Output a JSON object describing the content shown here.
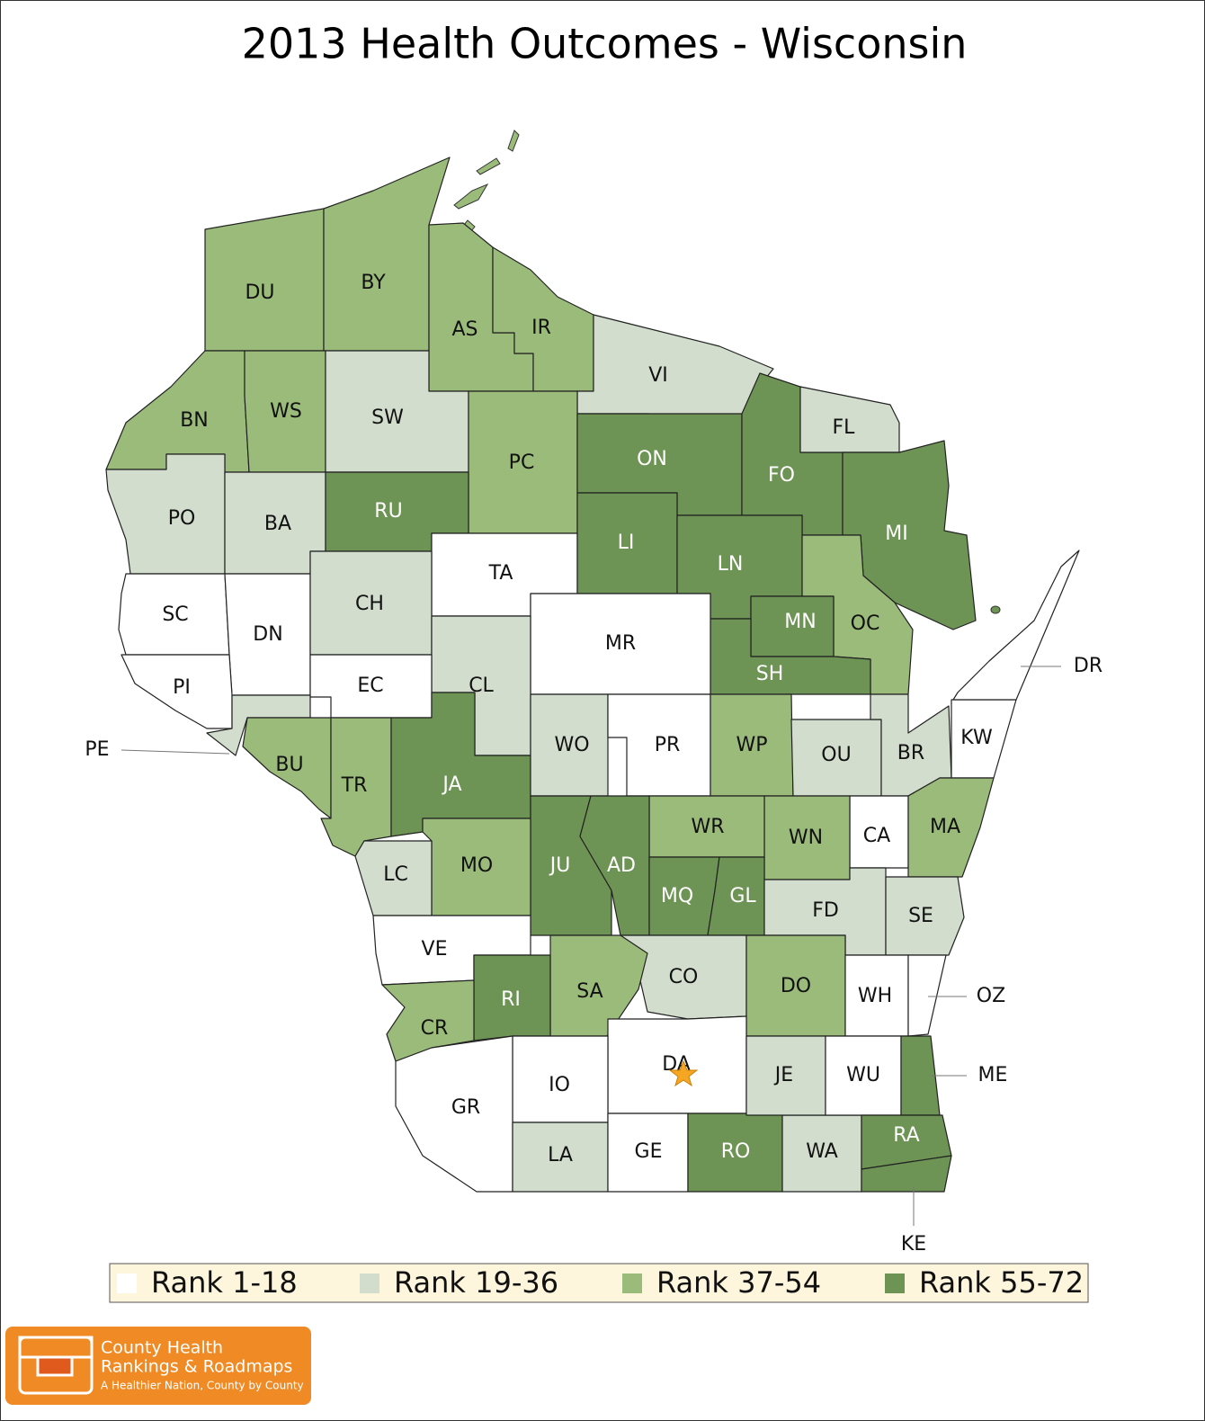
{
  "title": "2013 Health Outcomes - Wisconsin",
  "legend": [
    {
      "label": "Rank 1-18",
      "color": "#ffffff"
    },
    {
      "label": "Rank 19-36",
      "color": "#d2ddcd"
    },
    {
      "label": "Rank 37-54",
      "color": "#9bbb7b"
    },
    {
      "label": "Rank 55-72",
      "color": "#6e9455"
    }
  ],
  "counties": [
    {
      "label": "DU",
      "color": "#9bbb7b"
    },
    {
      "label": "BY",
      "color": "#9bbb7b"
    },
    {
      "label": "AS",
      "color": "#9bbb7b"
    },
    {
      "label": "IR",
      "color": "#9bbb7b"
    },
    {
      "label": "VI",
      "color": "#d2ddcd"
    },
    {
      "label": "BN",
      "color": "#9bbb7b"
    },
    {
      "label": "WS",
      "color": "#9bbb7b"
    },
    {
      "label": "SW",
      "color": "#d2ddcd"
    },
    {
      "label": "PC",
      "color": "#9bbb7b"
    },
    {
      "label": "ON",
      "color": "#6e9455"
    },
    {
      "label": "FO",
      "color": "#6e9455"
    },
    {
      "label": "FL",
      "color": "#d2ddcd"
    },
    {
      "label": "MI",
      "color": "#6e9455"
    },
    {
      "label": "PO",
      "color": "#d2ddcd"
    },
    {
      "label": "BA",
      "color": "#d2ddcd"
    },
    {
      "label": "RU",
      "color": "#6e9455"
    },
    {
      "label": "TA",
      "color": "#ffffff"
    },
    {
      "label": "LI",
      "color": "#6e9455"
    },
    {
      "label": "LN",
      "color": "#6e9455"
    },
    {
      "label": "OC",
      "color": "#9bbb7b"
    },
    {
      "label": "MN",
      "color": "#6e9455"
    },
    {
      "label": "SH",
      "color": "#6e9455"
    },
    {
      "label": "SC",
      "color": "#ffffff"
    },
    {
      "label": "DN",
      "color": "#ffffff"
    },
    {
      "label": "CH",
      "color": "#d2ddcd"
    },
    {
      "label": "MR",
      "color": "#ffffff"
    },
    {
      "label": "CL",
      "color": "#d2ddcd"
    },
    {
      "label": "EC",
      "color": "#ffffff"
    },
    {
      "label": "PI",
      "color": "#ffffff"
    },
    {
      "label": "PE",
      "color": "#d2ddcd"
    },
    {
      "label": "BU",
      "color": "#9bbb7b"
    },
    {
      "label": "TR",
      "color": "#9bbb7b"
    },
    {
      "label": "JA",
      "color": "#6e9455"
    },
    {
      "label": "WO",
      "color": "#d2ddcd"
    },
    {
      "label": "PR",
      "color": "#ffffff"
    },
    {
      "label": "WP",
      "color": "#9bbb7b"
    },
    {
      "label": "OU",
      "color": "#d2ddcd"
    },
    {
      "label": "BR",
      "color": "#d2ddcd"
    },
    {
      "label": "KW",
      "color": "#ffffff"
    },
    {
      "label": "DR",
      "color": "#ffffff"
    },
    {
      "label": "CA",
      "color": "#ffffff"
    },
    {
      "label": "MA",
      "color": "#9bbb7b"
    },
    {
      "label": "WN",
      "color": "#9bbb7b"
    },
    {
      "label": "WR",
      "color": "#9bbb7b"
    },
    {
      "label": "JU",
      "color": "#6e9455"
    },
    {
      "label": "AD",
      "color": "#6e9455"
    },
    {
      "label": "MQ",
      "color": "#6e9455"
    },
    {
      "label": "GL",
      "color": "#6e9455"
    },
    {
      "label": "MO",
      "color": "#9bbb7b"
    },
    {
      "label": "LC",
      "color": "#d2ddcd"
    },
    {
      "label": "VE",
      "color": "#ffffff"
    },
    {
      "label": "FD",
      "color": "#d2ddcd"
    },
    {
      "label": "SE",
      "color": "#d2ddcd"
    },
    {
      "label": "CO",
      "color": "#d2ddcd"
    },
    {
      "label": "SA",
      "color": "#9bbb7b"
    },
    {
      "label": "RI",
      "color": "#6e9455"
    },
    {
      "label": "CR",
      "color": "#9bbb7b"
    },
    {
      "label": "DO",
      "color": "#9bbb7b"
    },
    {
      "label": "WH",
      "color": "#ffffff"
    },
    {
      "label": "OZ",
      "color": "#ffffff"
    },
    {
      "label": "DA",
      "color": "#ffffff"
    },
    {
      "label": "IO",
      "color": "#ffffff"
    },
    {
      "label": "GR",
      "color": "#ffffff"
    },
    {
      "label": "LA",
      "color": "#d2ddcd"
    },
    {
      "label": "GE",
      "color": "#ffffff"
    },
    {
      "label": "RO",
      "color": "#6e9455"
    },
    {
      "label": "WA",
      "color": "#d2ddcd"
    },
    {
      "label": "JE",
      "color": "#d2ddcd"
    },
    {
      "label": "WU",
      "color": "#ffffff"
    },
    {
      "label": "ME",
      "color": "#6e9455"
    },
    {
      "label": "RA",
      "color": "#6e9455"
    },
    {
      "label": "KE",
      "color": "#6e9455"
    }
  ],
  "logo": {
    "lines": [
      "County Health",
      "Rankings & Roadmaps",
      "A Healthier Nation, County by County"
    ]
  }
}
